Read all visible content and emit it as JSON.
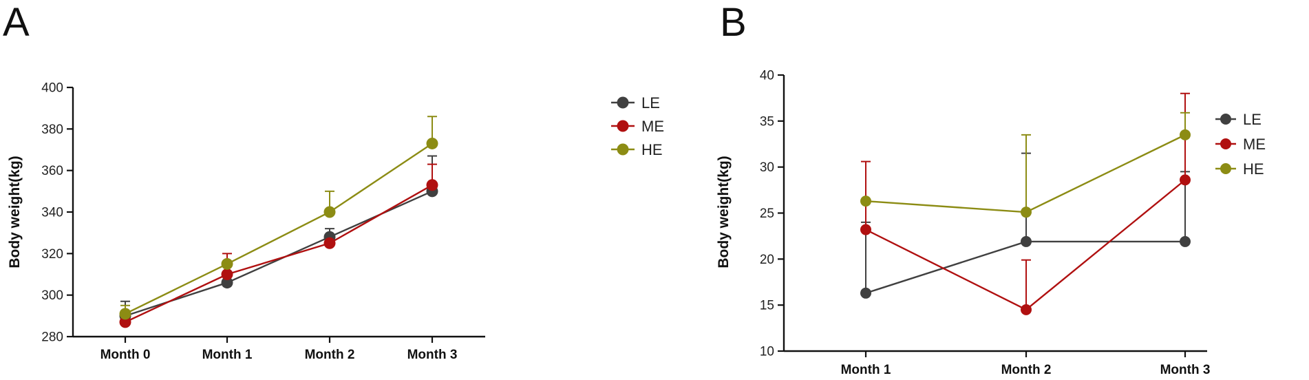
{
  "colors": {
    "LE": "#404040",
    "ME": "#b01010",
    "HE": "#8c8c14"
  },
  "chart_data": [
    {
      "panel": "A",
      "type": "line",
      "categories": [
        "Month 0",
        "Month 1",
        "Month 2",
        "Month 3"
      ],
      "ylabel": "Body weight(kg)",
      "xlabel": "",
      "ylim": [
        280,
        400
      ],
      "yticks": [
        280,
        300,
        320,
        340,
        360,
        380,
        400
      ],
      "legend_position": "right",
      "series": [
        {
          "name": "LE",
          "values": [
            290,
            306,
            328,
            350
          ],
          "err": [
            7,
            0,
            4,
            17
          ]
        },
        {
          "name": "ME",
          "values": [
            287,
            310,
            325,
            353
          ],
          "err": [
            0,
            10,
            0,
            10
          ]
        },
        {
          "name": "HE",
          "values": [
            291,
            315,
            340,
            373
          ],
          "err": [
            4,
            0,
            10,
            13
          ]
        }
      ]
    },
    {
      "panel": "B",
      "type": "line",
      "categories": [
        "Month 1",
        "Month 2",
        "Month 3"
      ],
      "ylabel": "Body weight(kg)",
      "xlabel": "",
      "ylim": [
        10,
        40
      ],
      "yticks": [
        10,
        15,
        20,
        25,
        30,
        35,
        40
      ],
      "legend_position": "right",
      "series": [
        {
          "name": "LE",
          "values": [
            16.3,
            21.9,
            21.9
          ],
          "err": [
            7.7,
            9.6,
            7.6
          ]
        },
        {
          "name": "ME",
          "values": [
            23.2,
            14.5,
            28.6
          ],
          "err": [
            7.4,
            5.4,
            9.4
          ]
        },
        {
          "name": "HE",
          "values": [
            26.3,
            25.1,
            33.5
          ],
          "err": [
            0,
            8.4,
            2.4
          ]
        }
      ]
    }
  ]
}
